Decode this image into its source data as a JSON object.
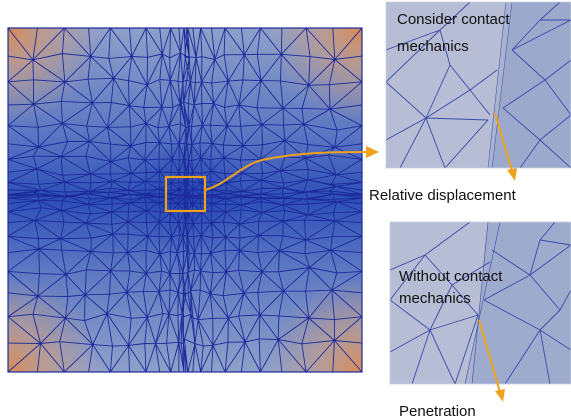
{
  "panels": {
    "top": {
      "label_line1": "Consider contact",
      "label_line2": "mechanics"
    },
    "bottom": {
      "label_line1": "Without contact",
      "label_line2": "mechanics"
    }
  },
  "captions": {
    "relative_displacement": "Relative displacement",
    "penetration": "Penetration"
  },
  "colors": {
    "mesh_blue": "#2f55b8",
    "mesh_line": "#1c2a9a",
    "corner_orange": "#d98a55",
    "accent_orange": "#f0a21a",
    "zoom_bg": "#a9b3cf"
  }
}
